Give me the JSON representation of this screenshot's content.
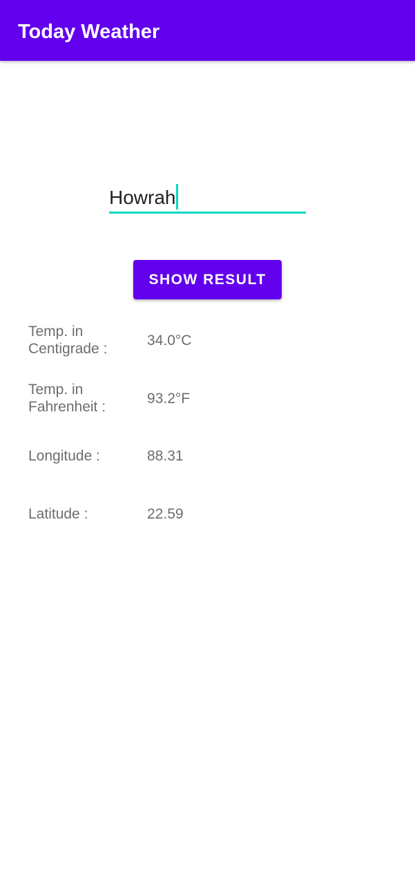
{
  "app_bar": {
    "title": "Today Weather",
    "background_color": "#6200ee"
  },
  "search": {
    "city_value": "Howrah",
    "accent_color": "#03dac5"
  },
  "action": {
    "button_label": "SHOW RESULT"
  },
  "results": {
    "centigrade_label": "Temp. in Centigrade :",
    "centigrade_value": "34.0°C",
    "fahrenheit_label": "Temp. in Fahrenheit :",
    "fahrenheit_value": "93.2°F",
    "longitude_label": "Longitude :",
    "longitude_value": "88.31",
    "latitude_label": "Latitude :",
    "latitude_value": "22.59"
  }
}
